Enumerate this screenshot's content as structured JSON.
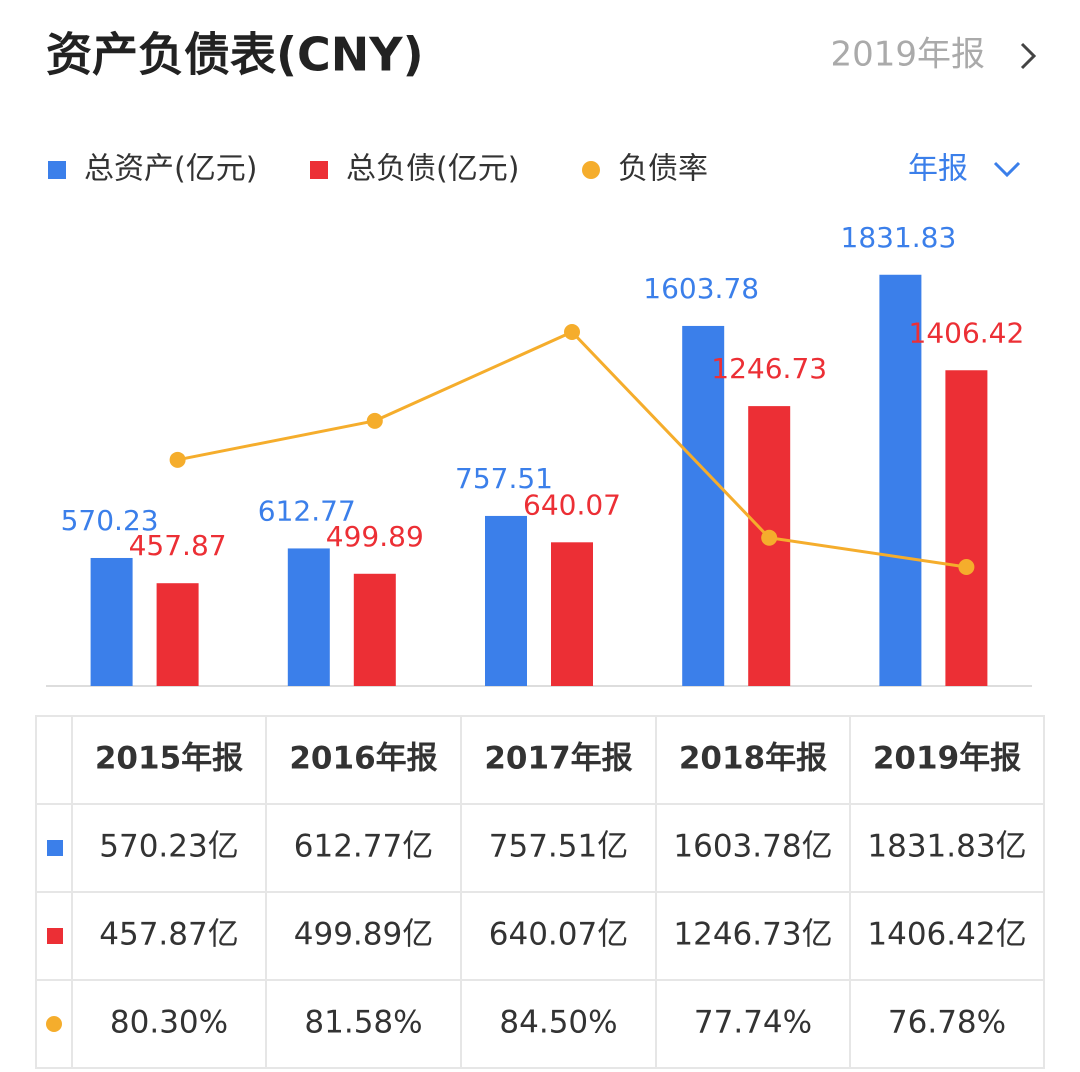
{
  "header": {
    "title": "资产负债表(CNY)",
    "period": "2019年报"
  },
  "chart_data": {
    "type": "bar",
    "period_selector": "年报",
    "categories": [
      "2015年报",
      "2016年报",
      "2017年报",
      "2018年报",
      "2019年报"
    ],
    "series": [
      {
        "name": "总资产(亿元)",
        "color": "#3b7fea",
        "values": [
          570.23,
          612.77,
          757.51,
          1603.78,
          1831.83
        ]
      },
      {
        "name": "总负债(亿元)",
        "color": "#ec2f35",
        "values": [
          457.87,
          499.89,
          640.07,
          1246.73,
          1406.42
        ]
      },
      {
        "name": "负债率",
        "color": "#f5ad2c",
        "type": "line",
        "axis": "y2",
        "values": [
          80.3,
          81.58,
          84.5,
          77.74,
          76.78
        ],
        "value_labels": [
          "80.30%",
          "81.58%",
          "84.50%",
          "77.74%",
          "76.78%"
        ]
      }
    ],
    "ylim": [
      0,
      2000
    ],
    "y2lim": [
      72.87,
      87.62
    ]
  },
  "table": {
    "rows": [
      [
        "570.23亿",
        "612.77亿",
        "757.51亿",
        "1603.78亿",
        "1831.83亿"
      ],
      [
        "457.87亿",
        "499.89亿",
        "640.07亿",
        "1246.73亿",
        "1406.42亿"
      ]
    ]
  }
}
